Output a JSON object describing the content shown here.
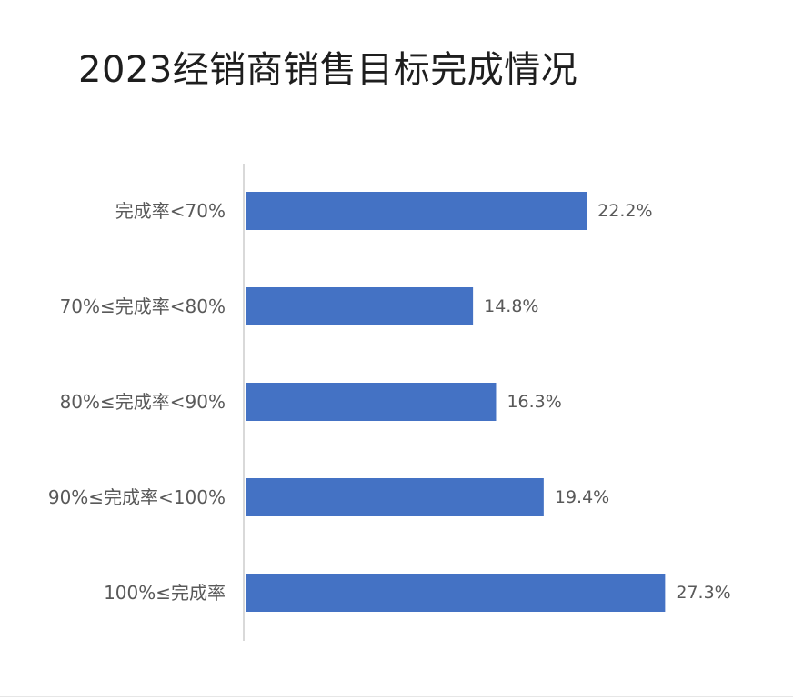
{
  "chart_data": {
    "type": "bar",
    "orientation": "horizontal",
    "title": "2023经销商销售目标完成情况",
    "categories": [
      "完成率<70%",
      "70%≤完成率<80%",
      "80%≤完成率<90%",
      "90%≤完成率<100%",
      "100%≤完成率"
    ],
    "values": [
      22.2,
      14.8,
      16.3,
      19.4,
      27.3
    ],
    "value_labels": [
      "22.2%",
      "14.8%",
      "16.3%",
      "19.4%",
      "27.3%"
    ],
    "xlim": [
      0,
      30
    ],
    "grid": false,
    "legend": "none",
    "bar_color": "#4472c4",
    "axis_color": "#d9d9d9"
  }
}
